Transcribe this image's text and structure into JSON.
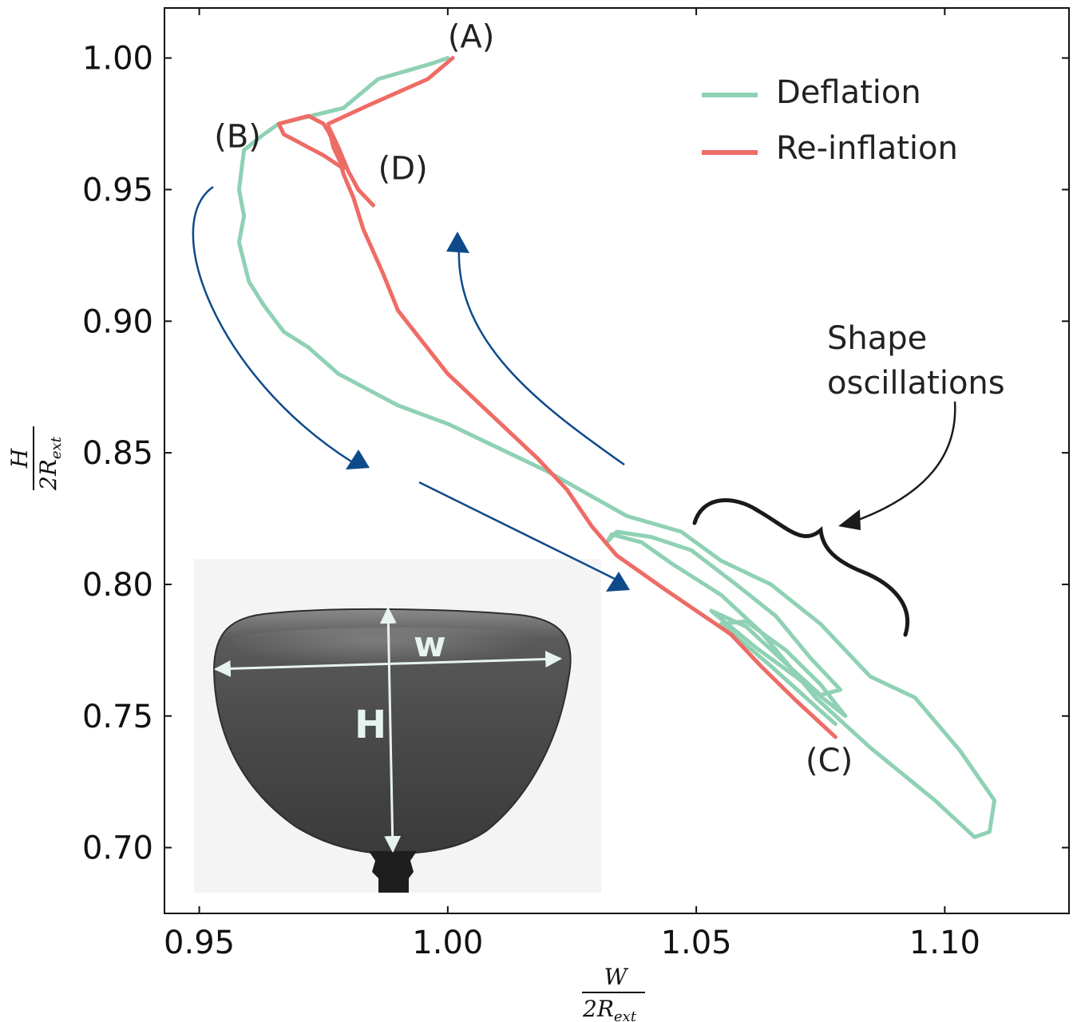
{
  "chart_data": {
    "type": "line",
    "xlabel": {
      "numerator": "W",
      "denominator": "2R",
      "subscript": "ext"
    },
    "ylabel": {
      "numerator": "H",
      "denominator": "2R",
      "subscript": "ext"
    },
    "xlim": [
      0.943,
      1.125
    ],
    "ylim": [
      0.675,
      1.019
    ],
    "xticks": [
      "0.95",
      "1.00",
      "1.05",
      "1.10"
    ],
    "yticks": [
      "0.70",
      "0.75",
      "0.80",
      "0.85",
      "0.90",
      "0.95",
      "1.00"
    ],
    "legend": {
      "position": "top-right",
      "entries": [
        "Deflation",
        "Re-inflation"
      ]
    },
    "colors": {
      "deflation": "#8fd1b4",
      "reinflation": "#ee6c66",
      "arrows": "#0e4a8a",
      "brace": "#1a1a1a"
    },
    "series": [
      {
        "name": "Deflation",
        "x": [
          1.0,
          0.997,
          0.986,
          0.979,
          0.966,
          0.963,
          0.959,
          0.958,
          0.959,
          0.958,
          0.96,
          0.963,
          0.967,
          0.972,
          0.978,
          0.99,
          1.0,
          1.02,
          1.036,
          1.047,
          1.055,
          1.065,
          1.075,
          1.085,
          1.094,
          1.103,
          1.11,
          1.109,
          1.106,
          1.098,
          1.085,
          1.074,
          1.063,
          1.055,
          1.05,
          1.045,
          1.039,
          1.033,
          1.032,
          1.034,
          1.041,
          1.049,
          1.058,
          1.066,
          1.073,
          1.079,
          1.075,
          1.068,
          1.06,
          1.053,
          1.062,
          1.07,
          1.078,
          1.08,
          1.075,
          1.068,
          1.06,
          1.055,
          1.065,
          1.075,
          1.078
        ],
        "y": [
          1.0,
          0.998,
          0.992,
          0.981,
          0.975,
          0.971,
          0.965,
          0.95,
          0.94,
          0.93,
          0.915,
          0.906,
          0.896,
          0.89,
          0.88,
          0.868,
          0.861,
          0.843,
          0.826,
          0.82,
          0.809,
          0.8,
          0.785,
          0.765,
          0.757,
          0.737,
          0.718,
          0.706,
          0.704,
          0.718,
          0.738,
          0.757,
          0.782,
          0.796,
          0.802,
          0.808,
          0.816,
          0.819,
          0.816,
          0.82,
          0.818,
          0.813,
          0.8,
          0.788,
          0.772,
          0.76,
          0.758,
          0.77,
          0.784,
          0.79,
          0.776,
          0.765,
          0.753,
          0.75,
          0.762,
          0.775,
          0.786,
          0.785,
          0.769,
          0.752,
          0.747
        ]
      },
      {
        "name": "Re-inflation",
        "x": [
          1.078,
          1.07,
          1.063,
          1.057,
          1.05,
          1.043,
          1.034,
          1.029,
          1.024,
          1.018,
          1.0,
          0.99,
          0.987,
          0.983,
          0.981,
          0.979,
          0.978,
          0.977,
          0.976,
          0.975,
          0.972,
          0.966,
          0.967,
          0.975,
          0.979,
          0.977,
          0.976,
          0.978,
          0.98,
          0.982,
          0.985
        ],
        "y": [
          0.742,
          0.756,
          0.769,
          0.781,
          0.79,
          0.799,
          0.811,
          0.822,
          0.836,
          0.848,
          0.88,
          0.904,
          0.918,
          0.935,
          0.947,
          0.956,
          0.963,
          0.968,
          0.972,
          0.975,
          0.978,
          0.975,
          0.971,
          0.963,
          0.958,
          0.966,
          0.974,
          0.966,
          0.957,
          0.95,
          0.944
        ]
      },
      {
        "name": "Re-inflation-upper",
        "x": [
          0.976,
          0.984,
          0.996,
          1.001
        ],
        "y": [
          0.975,
          0.982,
          0.992,
          1.0
        ]
      }
    ],
    "annotations": [
      {
        "label": "(A)",
        "x": 1.0,
        "y": 1.004
      },
      {
        "label": "(B)",
        "x": 0.953,
        "y": 0.966
      },
      {
        "label": "(D)",
        "x": 0.986,
        "y": 0.954
      },
      {
        "label": "(C)",
        "x": 1.072,
        "y": 0.729
      }
    ],
    "note": [
      "Shape",
      "oscillations"
    ],
    "inset_labels": {
      "width": "w",
      "height": "H"
    }
  }
}
